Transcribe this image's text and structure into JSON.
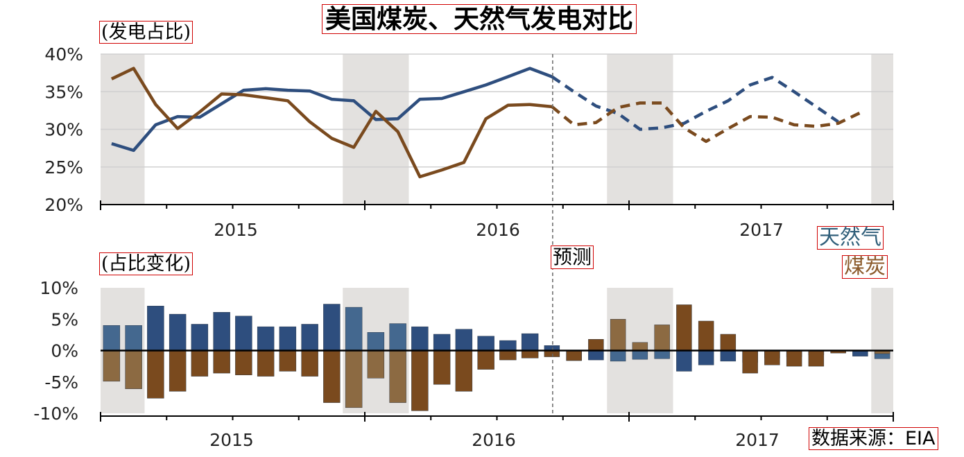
{
  "title": "美国煤炭、天然气发电对比",
  "top_panel": {
    "label": "(发电占比)"
  },
  "bottom_panel": {
    "label": "(占比变化)"
  },
  "forecast_label": "预测",
  "legend": {
    "gas": "天然气",
    "coal": "煤炭"
  },
  "source": "数据来源：EIA",
  "colors": {
    "gas": "#2e4e7e",
    "coal": "#7a4a1e",
    "gas_shaded": "#44688f",
    "coal_shaded": "#8c6a42",
    "gas_legend": "#2f5e79",
    "coal_legend": "#8b5a2b",
    "shade": "#e3e1df",
    "grid": "#d0d0d0"
  },
  "chart_data": [
    {
      "type": "line",
      "title": "(发电占比)",
      "x": [
        "2015-01",
        "2015-02",
        "2015-03",
        "2015-04",
        "2015-05",
        "2015-06",
        "2015-07",
        "2015-08",
        "2015-09",
        "2015-10",
        "2015-11",
        "2015-12",
        "2016-01",
        "2016-02",
        "2016-03",
        "2016-04",
        "2016-05",
        "2016-06",
        "2016-07",
        "2016-08",
        "2016-09",
        "2016-10",
        "2016-11",
        "2016-12",
        "2017-01",
        "2017-02",
        "2017-03",
        "2017-04",
        "2017-05",
        "2017-06",
        "2017-07",
        "2017-08",
        "2017-09",
        "2017-10",
        "2017-11",
        "2017-12"
      ],
      "x_tick_labels": [
        "2015",
        "2016",
        "2017"
      ],
      "ylim": [
        20,
        40
      ],
      "y_ticks": [
        "20%",
        "25%",
        "30%",
        "35%",
        "40%"
      ],
      "grid": true,
      "forecast_from": "2016-09",
      "shaded_months": [
        "2015-01",
        "2015-02",
        "2015-12",
        "2016-01",
        "2016-02",
        "2016-12",
        "2017-01",
        "2017-02",
        "2017-12"
      ],
      "series": [
        {
          "name": "天然气",
          "color_key": "gas",
          "values": [
            28.1,
            27.2,
            30.6,
            31.7,
            31.6,
            33.4,
            35.2,
            35.4,
            35.2,
            35.1,
            34.0,
            33.8,
            31.3,
            31.4,
            34.0,
            34.1,
            35.0,
            35.9,
            37.0,
            38.1,
            37.0,
            35.0,
            33.1,
            32.1,
            30.0,
            30.2,
            30.8,
            32.4,
            33.8,
            35.9,
            36.9,
            35.0,
            33.0,
            31.0,
            null,
            null
          ]
        },
        {
          "name": "煤炭",
          "color_key": "coal",
          "values": [
            36.7,
            38.1,
            33.3,
            30.1,
            32.3,
            34.7,
            34.6,
            34.2,
            33.8,
            31.0,
            28.8,
            27.6,
            32.4,
            29.7,
            23.7,
            24.6,
            25.6,
            31.4,
            33.2,
            33.3,
            33.0,
            30.6,
            30.9,
            32.9,
            33.5,
            33.5,
            30.2,
            28.4,
            30.1,
            31.7,
            31.6,
            30.6,
            30.4,
            30.8,
            32.2,
            null
          ]
        }
      ]
    },
    {
      "type": "bar",
      "title": "(占比变化)",
      "categories": [
        "2015-01",
        "2015-02",
        "2015-03",
        "2015-04",
        "2015-05",
        "2015-06",
        "2015-07",
        "2015-08",
        "2015-09",
        "2015-10",
        "2015-11",
        "2015-12",
        "2016-01",
        "2016-02",
        "2016-03",
        "2016-04",
        "2016-05",
        "2016-06",
        "2016-07",
        "2016-08",
        "2016-09",
        "2016-10",
        "2016-11",
        "2016-12",
        "2017-01",
        "2017-02",
        "2017-03",
        "2017-04",
        "2017-05",
        "2017-06",
        "2017-07",
        "2017-08",
        "2017-09",
        "2017-10",
        "2017-11",
        "2017-12"
      ],
      "x_tick_labels": [
        "2015",
        "2016",
        "2017"
      ],
      "ylim": [
        -10,
        10
      ],
      "y_ticks": [
        "-10%",
        "-5%",
        "0%",
        "5%",
        "10%"
      ],
      "series": [
        {
          "name": "天然气",
          "color_key": "gas",
          "values": [
            4.0,
            4.0,
            7.1,
            5.8,
            4.2,
            6.1,
            5.5,
            3.8,
            3.8,
            4.2,
            7.4,
            6.9,
            2.9,
            4.3,
            3.8,
            2.6,
            3.4,
            2.3,
            1.6,
            2.7,
            0.8,
            -1.6,
            -1.5,
            -1.7,
            -1.4,
            -1.3,
            -3.3,
            -2.3,
            -1.7,
            -1.9,
            -1.2,
            -1.0,
            -0.7,
            -0.3,
            -0.9,
            -1.3
          ]
        },
        {
          "name": "煤炭",
          "color_key": "coal",
          "values": [
            -4.9,
            -6.1,
            -7.6,
            -6.5,
            -4.1,
            -3.6,
            -3.9,
            -4.1,
            -3.3,
            -4.1,
            -8.3,
            -9.1,
            -4.4,
            -8.3,
            -9.6,
            -5.4,
            -6.5,
            -3.0,
            -1.5,
            -1.2,
            -1.0,
            -1.6,
            1.8,
            5.0,
            1.3,
            4.1,
            7.3,
            4.7,
            2.6,
            -3.6,
            -2.3,
            -2.5,
            -2.5,
            -0.4,
            -0.1,
            -0.5
          ]
        }
      ]
    }
  ]
}
